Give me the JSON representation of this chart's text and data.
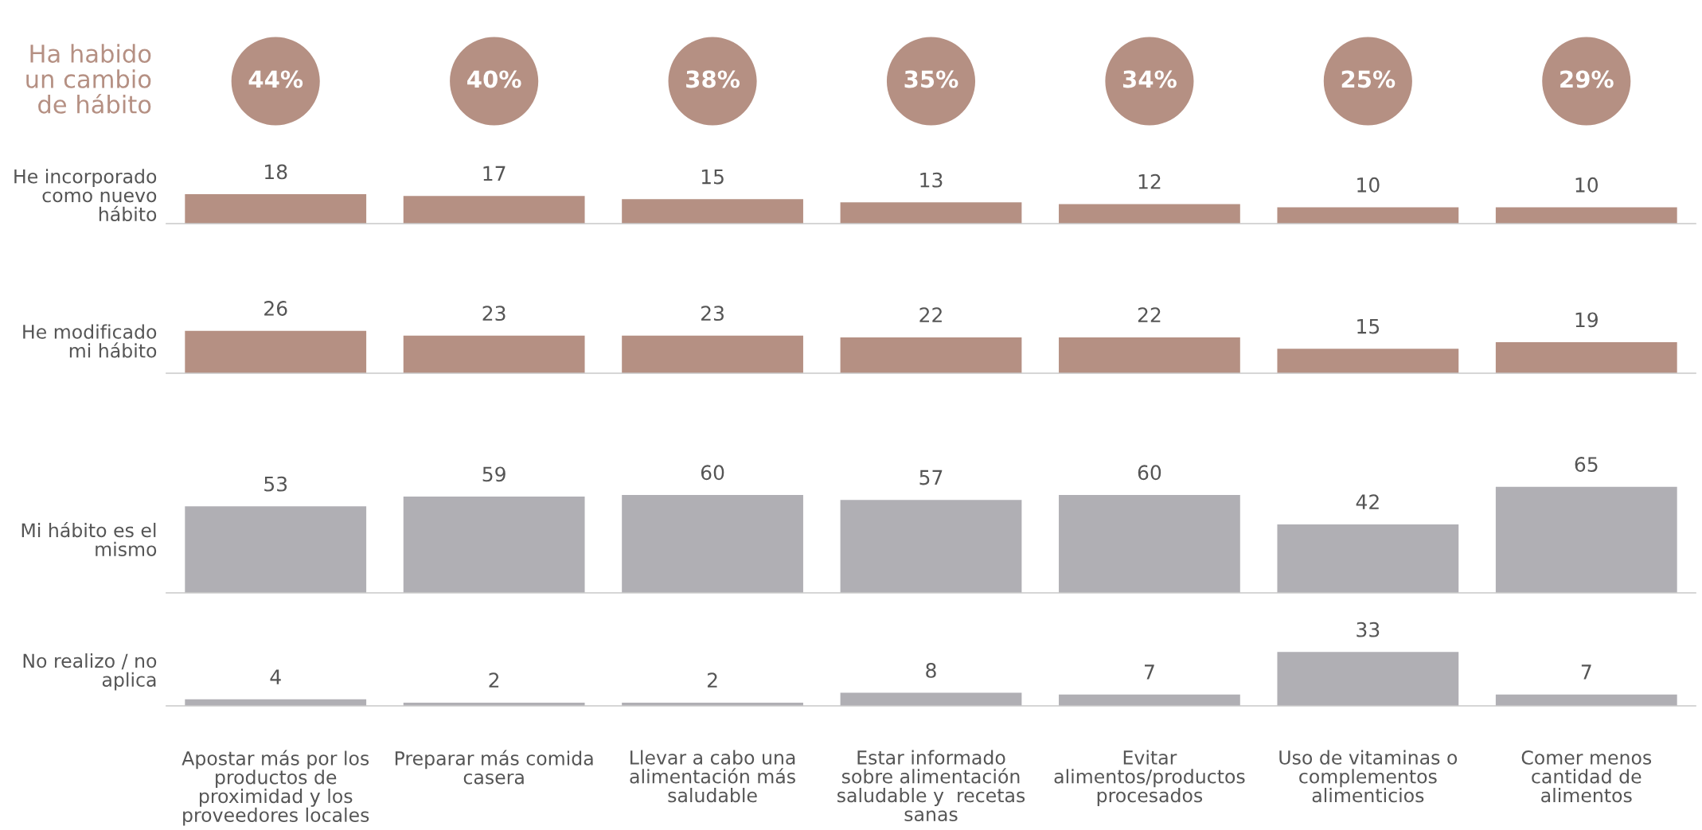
{
  "chart_data": [
    {
      "type": "other",
      "title": "Ha habido\nun cambio\nde hábito",
      "categories": [
        null,
        null,
        null,
        null,
        null,
        null,
        null
      ],
      "annotations": [
        "44%",
        "40%",
        "38%",
        "35%",
        "34%",
        "25%",
        "29%"
      ],
      "color": "#b59083"
    },
    {
      "type": "bar",
      "ylabel": "He incorporado\ncomo nuevo\nhábito",
      "categories": [
        null,
        null,
        null,
        null,
        null,
        null,
        null
      ],
      "values": [
        18,
        17,
        15,
        13,
        12,
        10,
        10
      ],
      "color": "#b59083",
      "data_labels": true,
      "tick_labels": false
    },
    {
      "type": "bar",
      "ylabel": "He modificado\nmi hábito",
      "categories": [
        null,
        null,
        null,
        null,
        null,
        null,
        null
      ],
      "values": [
        26,
        23,
        23,
        22,
        22,
        15,
        19
      ],
      "color": "#b59083",
      "data_labels": true,
      "tick_labels": false
    },
    {
      "type": "bar",
      "ylabel": "Mi hábito es el\nmismo",
      "categories": [
        null,
        null,
        null,
        null,
        null,
        null,
        null
      ],
      "values": [
        53,
        59,
        60,
        57,
        60,
        42,
        65
      ],
      "color": "#b0afb4",
      "data_labels": true,
      "tick_labels": false
    },
    {
      "type": "bar",
      "ylabel": "No realizo / no\naplica",
      "categories": [
        "Apostar más por los\nproductos de\nproximidad y los\nproveedores locales",
        "Preparar más comida\ncasera",
        "Llevar a cabo una\nalimentación más\nsaludable",
        "Estar informado\nsobre alimentación\nsaludable y  recetas\nsanas",
        "Evitar\nalimentos/productos\nprocesados",
        "Uso de vitaminas o\ncomplementos\nalimenticios",
        "Comer menos\ncantidad de\nalimentos"
      ],
      "values": [
        4,
        2,
        2,
        8,
        7,
        33,
        7
      ],
      "color": "#b0afb4",
      "data_labels": true,
      "tick_labels": "x"
    }
  ]
}
